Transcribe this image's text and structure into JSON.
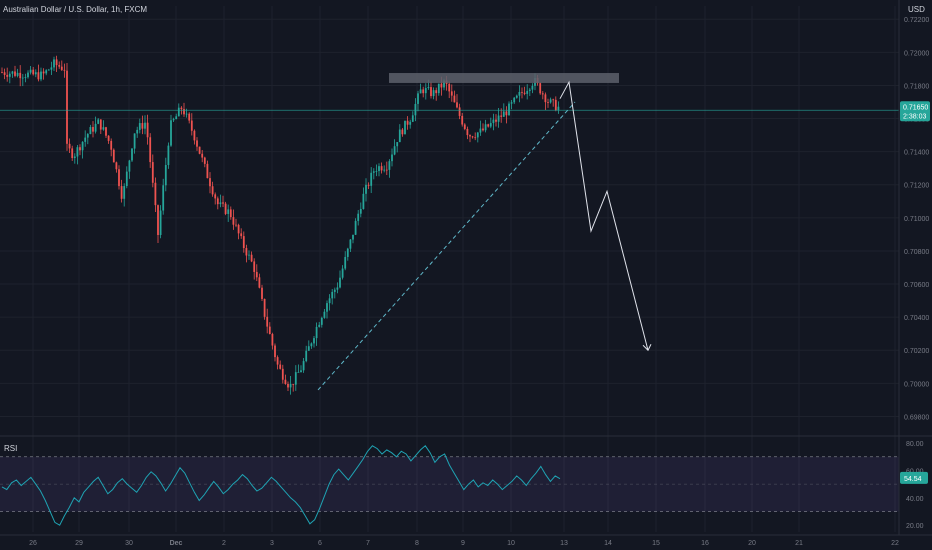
{
  "header": {
    "symbol_title": "Australian Dollar / U.S. Dollar, 1h, FXCM",
    "currency": "USD"
  },
  "rsi_panel": {
    "title": "RSI"
  },
  "colors": {
    "background": "#131722",
    "up_candle": "#26a69a",
    "down_candle": "#ef5350",
    "rsi_line": "#1fa3b3",
    "rsi_band": "#7e57c2",
    "price_tag": "#26a69a",
    "resistance_box": "#5d606b",
    "drawing": "#e0e3eb",
    "grid": "#1e222d",
    "axis_text": "#787b86"
  },
  "chart_data": [
    {
      "type": "candlestick",
      "title": "Australian Dollar / U.S. Dollar, 1h, FXCM",
      "y_unit": "USD",
      "ylim": [
        0.697,
        0.7228
      ],
      "y_ticks": [
        "0.72200",
        "0.72000",
        "0.71800",
        "0.71600",
        "0.71400",
        "0.71200",
        "0.71000",
        "0.70800",
        "0.70600",
        "0.70400",
        "0.70200",
        "0.70000",
        "0.69800"
      ],
      "x_ticks": [
        "26",
        "29",
        "30",
        "Dec",
        "2",
        "3",
        "6",
        "7",
        "8",
        "9",
        "10",
        "13",
        "14",
        "15",
        "16",
        "20",
        "21",
        "22"
      ],
      "last_price_label": [
        "0.71650",
        "2:38:03"
      ],
      "last_price": 0.7165,
      "price_path": [
        [
          "26",
          0.7188
        ],
        [
          "26",
          0.7186
        ],
        [
          "26",
          0.7193
        ],
        [
          "26",
          0.719
        ],
        [
          "29",
          0.7158
        ],
        [
          "29",
          0.7145
        ],
        [
          "29",
          0.7138
        ],
        [
          "29",
          0.715
        ],
        [
          "30",
          0.7158
        ],
        [
          "30",
          0.7144
        ],
        [
          "30",
          0.7112
        ],
        [
          "30",
          0.7152
        ],
        [
          "Dec",
          0.7158
        ],
        [
          "Dec",
          0.709
        ],
        [
          "Dec",
          0.7155
        ],
        [
          "Dec",
          0.7167
        ],
        [
          "2",
          0.715
        ],
        [
          "2",
          0.7128
        ],
        [
          "2",
          0.7108
        ],
        [
          "2",
          0.7103
        ],
        [
          "3",
          0.7085
        ],
        [
          "3",
          0.707
        ],
        [
          "3",
          0.7038
        ],
        [
          "3",
          0.701
        ],
        [
          "6",
          0.6998
        ],
        [
          "6",
          0.701
        ],
        [
          "6",
          0.703
        ],
        [
          "6",
          0.7048
        ],
        [
          "7",
          0.706
        ],
        [
          "7",
          0.7085
        ],
        [
          "7",
          0.7112
        ],
        [
          "7",
          0.713
        ],
        [
          "8",
          0.7132
        ],
        [
          "8",
          0.715
        ],
        [
          "8",
          0.716
        ],
        [
          "8",
          0.7178
        ],
        [
          "9",
          0.7175
        ],
        [
          "9",
          0.7182
        ],
        [
          "9",
          0.7165
        ],
        [
          "9",
          0.715
        ],
        [
          "10",
          0.7152
        ],
        [
          "10",
          0.7158
        ],
        [
          "10",
          0.7165
        ],
        [
          "10",
          0.7175
        ],
        [
          "13",
          0.7183
        ],
        [
          "13",
          0.717
        ],
        [
          "13",
          0.7165
        ]
      ],
      "annotations": {
        "resistance_zone": [
          0.71815,
          0.71875
        ],
        "trendline_from": [
          "6",
          0.6996
        ],
        "trendline_to": [
          "13",
          0.717
        ],
        "projection_path": [
          [
            "13",
            0.7182
          ],
          [
            "14",
            0.7092
          ],
          [
            "14",
            0.7116
          ],
          [
            "15",
            0.702
          ]
        ]
      }
    },
    {
      "type": "line",
      "title": "RSI",
      "ylim": [
        15,
        83
      ],
      "y_ticks": [
        "80.00",
        "60.00",
        "54.54",
        "40.00",
        "20.00"
      ],
      "bands": [
        70,
        30
      ],
      "midline": 50,
      "last_value": 54.54,
      "values": [
        48,
        46,
        51,
        53,
        49,
        52,
        55,
        50,
        45,
        38,
        30,
        22,
        20,
        27,
        33,
        40,
        37,
        44,
        48,
        52,
        55,
        49,
        43,
        46,
        51,
        54,
        50,
        47,
        44,
        49,
        55,
        59,
        56,
        51,
        45,
        50,
        56,
        62,
        58,
        51,
        44,
        38,
        42,
        47,
        52,
        48,
        43,
        46,
        50,
        53,
        57,
        54,
        49,
        45,
        47,
        51,
        55,
        52,
        48,
        44,
        40,
        37,
        33,
        27,
        21,
        24,
        32,
        41,
        50,
        57,
        61,
        57,
        53,
        58,
        63,
        68,
        74,
        78,
        76,
        72,
        75,
        73,
        70,
        74,
        72,
        67,
        71,
        75,
        78,
        73,
        66,
        70,
        72,
        64,
        58,
        52,
        46,
        50,
        53,
        48,
        51,
        49,
        53,
        50,
        46,
        49,
        52,
        56,
        53,
        49,
        54,
        58,
        63,
        57,
        52,
        56,
        54
      ]
    }
  ]
}
